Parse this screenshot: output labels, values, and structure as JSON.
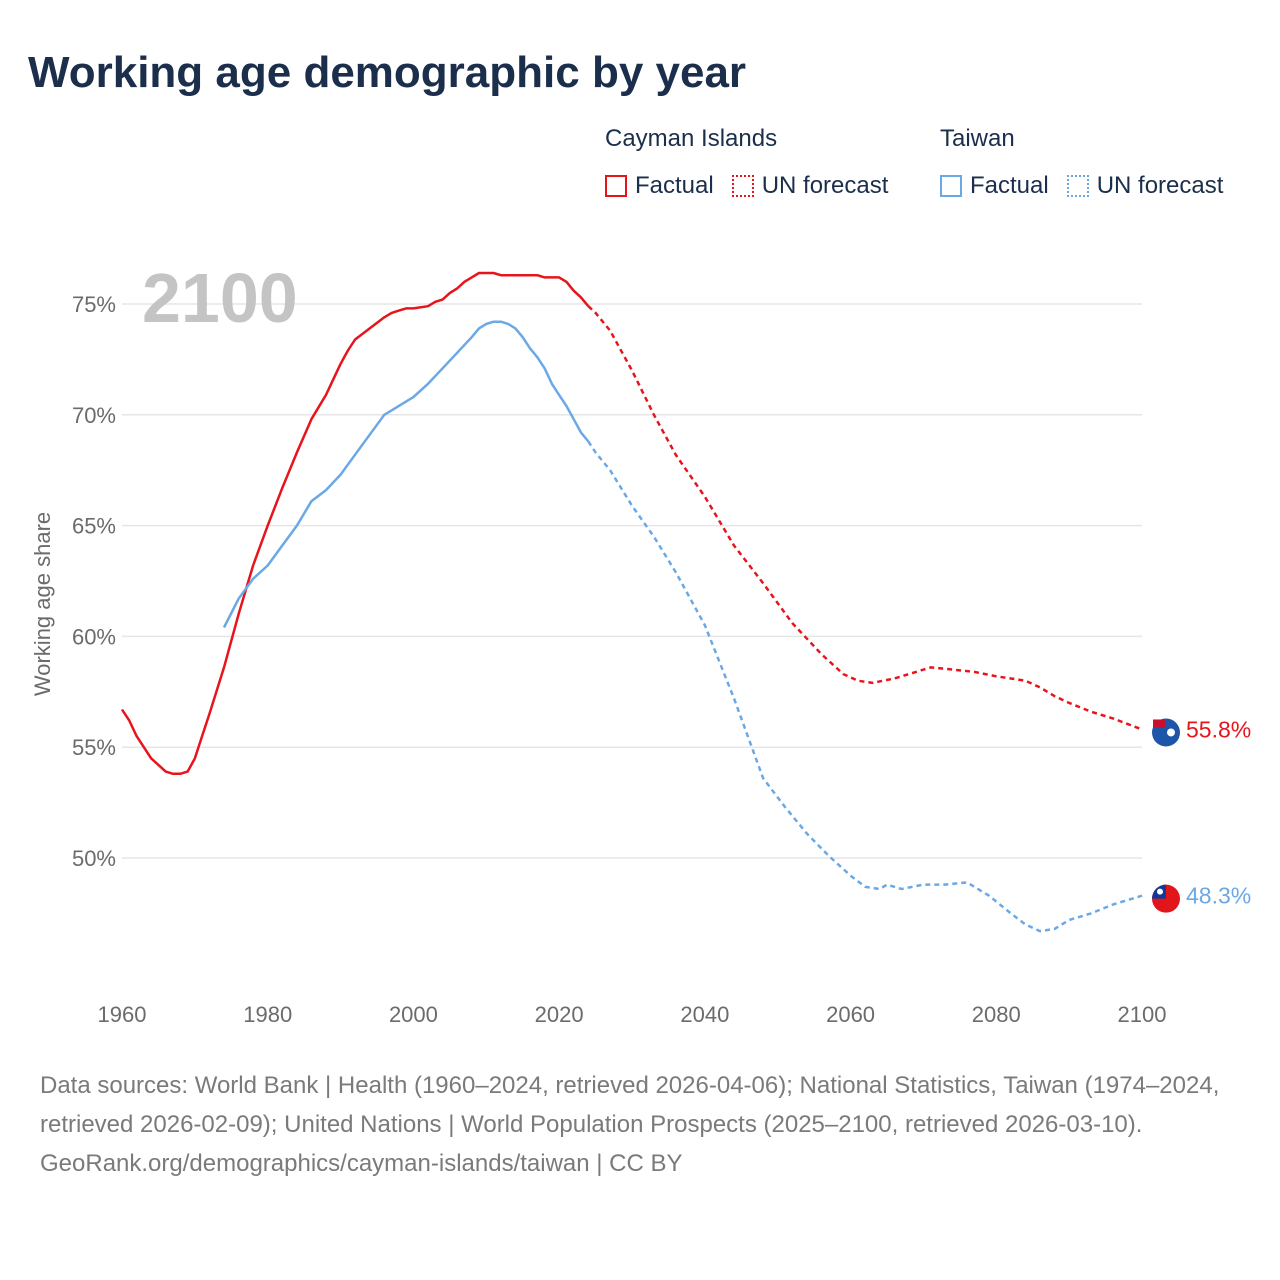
{
  "title": "Working age demographic by year",
  "legend": {
    "groups": [
      {
        "name": "Cayman Islands",
        "items": [
          "Factual",
          "UN forecast"
        ]
      },
      {
        "name": "Taiwan",
        "items": [
          "Factual",
          "UN forecast"
        ]
      }
    ]
  },
  "colors": {
    "cayman": "#e8141b",
    "taiwan": "#6aa8e6",
    "year_label": "#c4c4c4",
    "grid": "#e6e6e6",
    "axis_text": "#6b6b6b"
  },
  "footer": {
    "sources": "Data sources: World Bank | Health (1960–2024, retrieved 2026-04-06); National Statistics, Taiwan (1974–2024, retrieved 2026-02-09); United Nations | World Population Prospects (2025–2100, retrieved 2026-03-10).",
    "credit": "GeoRank.org/demographics/cayman-islands/taiwan | CC BY"
  },
  "chart_data": {
    "type": "line",
    "title": "Working age demographic by year",
    "year_label": "2100",
    "xlabel": "",
    "ylabel": "Working age share",
    "xlim": [
      1960,
      2100
    ],
    "ylim": [
      45,
      77
    ],
    "x_ticks": [
      1960,
      1980,
      2000,
      2020,
      2040,
      2060,
      2080,
      2100
    ],
    "x_tick_labels": [
      "1960",
      "1980",
      "2000",
      "2020",
      "2040",
      "2060",
      "2080",
      "2100"
    ],
    "y_ticks": [
      50,
      55,
      60,
      65,
      70,
      75
    ],
    "y_tick_labels": [
      "50%",
      "55%",
      "60%",
      "65%",
      "70%",
      "75%"
    ],
    "series": [
      {
        "name": "Cayman Islands",
        "factual": {
          "x": [
            1960,
            1961,
            1962,
            1964,
            1966,
            1967,
            1968,
            1969,
            1970,
            1971,
            1972,
            1974,
            1976,
            1978,
            1980,
            1982,
            1984,
            1986,
            1988,
            1989,
            1990,
            1991,
            1992,
            1994,
            1996,
            1997,
            1998,
            1999,
            2000,
            2002,
            2003,
            2004,
            2005,
            2006,
            2007,
            2008,
            2009,
            2010,
            2011,
            2012,
            2014,
            2016,
            2017,
            2018,
            2019,
            2020,
            2021,
            2022,
            2023,
            2024
          ],
          "y": [
            56.7,
            56.2,
            55.5,
            54.5,
            53.9,
            53.8,
            53.8,
            53.9,
            54.5,
            55.5,
            56.5,
            58.6,
            61.0,
            63.2,
            65.0,
            66.7,
            68.3,
            69.8,
            70.9,
            71.6,
            72.3,
            72.9,
            73.4,
            73.9,
            74.4,
            74.6,
            74.7,
            74.8,
            74.8,
            74.9,
            75.1,
            75.2,
            75.5,
            75.7,
            76.0,
            76.2,
            76.4,
            76.4,
            76.4,
            76.3,
            76.3,
            76.3,
            76.3,
            76.2,
            76.2,
            76.2,
            76.0,
            75.6,
            75.3,
            74.9
          ]
        },
        "forecast": {
          "x": [
            2024,
            2025,
            2027,
            2030,
            2033,
            2036,
            2040,
            2044,
            2048,
            2052,
            2056,
            2059,
            2061,
            2063,
            2066,
            2069,
            2071,
            2074,
            2077,
            2080,
            2082,
            2084,
            2086,
            2088,
            2090,
            2093,
            2096,
            2100
          ],
          "y": [
            74.9,
            74.6,
            73.8,
            72.0,
            70.0,
            68.2,
            66.3,
            64.1,
            62.4,
            60.6,
            59.2,
            58.3,
            58.0,
            57.9,
            58.1,
            58.4,
            58.6,
            58.5,
            58.4,
            58.2,
            58.1,
            58.0,
            57.7,
            57.3,
            57.0,
            56.6,
            56.3,
            55.8
          ]
        },
        "end_label": "55.8%"
      },
      {
        "name": "Taiwan",
        "factual": {
          "x": [
            1974,
            1976,
            1978,
            1980,
            1982,
            1984,
            1986,
            1988,
            1990,
            1992,
            1994,
            1996,
            1998,
            2000,
            2002,
            2004,
            2006,
            2008,
            2009,
            2010,
            2011,
            2012,
            2013,
            2014,
            2015,
            2016,
            2017,
            2018,
            2019,
            2020,
            2021,
            2022,
            2023,
            2024
          ],
          "y": [
            60.4,
            61.7,
            62.6,
            63.2,
            64.1,
            65.0,
            66.1,
            66.6,
            67.3,
            68.2,
            69.1,
            70.0,
            70.4,
            70.8,
            71.4,
            72.1,
            72.8,
            73.5,
            73.9,
            74.1,
            74.2,
            74.2,
            74.1,
            73.9,
            73.5,
            73.0,
            72.6,
            72.1,
            71.4,
            70.9,
            70.4,
            69.8,
            69.2,
            68.8
          ]
        },
        "forecast": {
          "x": [
            2024,
            2025,
            2027,
            2030,
            2033,
            2036,
            2040,
            2044,
            2048,
            2051,
            2054,
            2057,
            2060,
            2062,
            2064,
            2065,
            2067,
            2070,
            2073,
            2076,
            2079,
            2082,
            2084,
            2086,
            2088,
            2090,
            2093,
            2096,
            2100
          ],
          "y": [
            68.8,
            68.3,
            67.5,
            65.9,
            64.5,
            62.9,
            60.5,
            57.2,
            53.6,
            52.3,
            51.1,
            50.1,
            49.2,
            48.7,
            48.6,
            48.8,
            48.6,
            48.8,
            48.8,
            48.9,
            48.3,
            47.5,
            47.0,
            46.7,
            46.8,
            47.2,
            47.5,
            47.9,
            48.3
          ]
        },
        "end_label": "48.3%"
      }
    ]
  }
}
